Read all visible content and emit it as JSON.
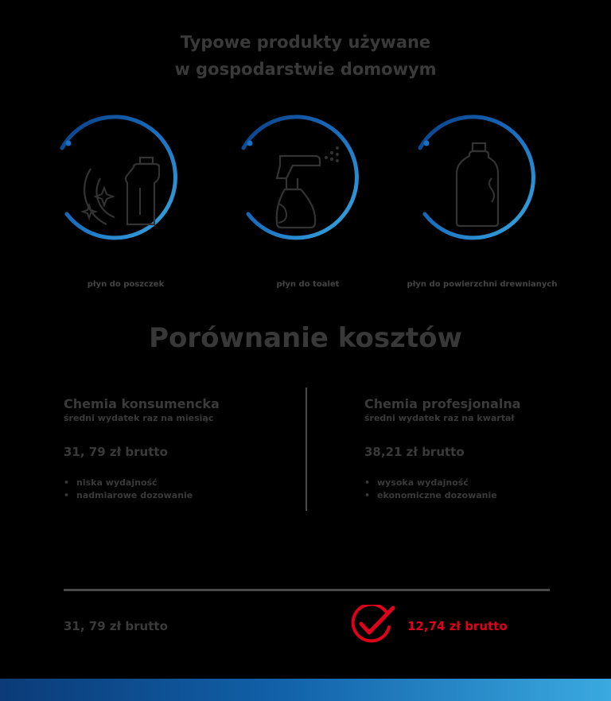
{
  "title": {
    "line1": "Typowe produkty używane",
    "line2": "w gospodarstwie domowym"
  },
  "products": [
    {
      "label": "płyn do poszczek",
      "icon": "dish-soap-icon"
    },
    {
      "label": "płyn do toalet",
      "icon": "spray-bottle-icon"
    },
    {
      "label": "płyn do powierzchni drewnianych",
      "icon": "bottle-icon"
    }
  ],
  "heading": "Porównanie kosztów",
  "consumer": {
    "name": "Chemia konsumencka",
    "sub": "średni wydatek raz na miesiąc",
    "price": "31, 79 zł brutto",
    "bullets": [
      "niska wydajność",
      "nadmiarowe dozowanie"
    ]
  },
  "professional": {
    "name": "Chemia profesjonalna",
    "sub": "średni wydatek raz na kwartał",
    "price": "38,21 zł brutto",
    "bullets": [
      "wysoka wydajność",
      "ekonomiczne dozowanie"
    ]
  },
  "totals": {
    "left": "31, 79 zł brutto",
    "right": "12,74 zł brutto"
  },
  "colors": {
    "accent_blue": "#1a6fc0",
    "highlight_red": "#e0001b",
    "text_gray": "#3a3a3a"
  }
}
